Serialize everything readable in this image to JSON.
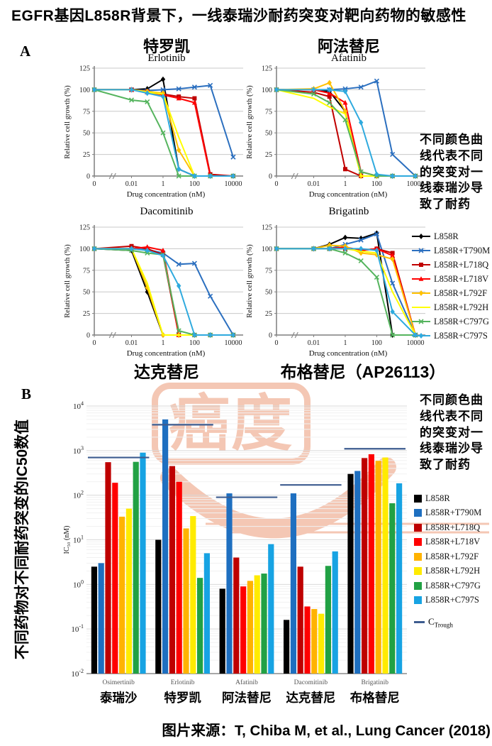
{
  "title": "EGFR基因L858R背景下，一线泰瑞沙耐药突变对靶向药物的敏感性",
  "caption": "图片来源：T, Chiba M, et al., Lung Cancer (2018)",
  "watermark": "癌度",
  "side_note": "不同颜色曲线代表不同的突变对一线泰瑞沙导致了耐药",
  "panel_a": {
    "label": "A",
    "y_label": "Relative cell growth (%)",
    "x_label": "Drug concentration (nM)",
    "x_tick_labels": [
      "0",
      "0.01",
      "1",
      "100",
      "10000"
    ],
    "x_tick_indices": [
      0,
      1,
      3,
      5,
      7
    ],
    "y_ticks": [
      0,
      25,
      50,
      75,
      100,
      125
    ]
  },
  "panel_b": {
    "label": "B",
    "axis_label_cn": "不同药物对不同耐药突变的IC50数值",
    "y_label": "IC₅₀ (nM)",
    "y_tick_exponents": [
      "4",
      "3",
      "2",
      "1",
      "0",
      "-1",
      "-2"
    ]
  },
  "legend": {
    "ctrough": {
      "pre": "C",
      "sub": "Trough"
    }
  },
  "chart_data": [
    {
      "id": "erlotinib",
      "type": "line",
      "title_cn": "特罗凯",
      "title_en": "Erlotinib",
      "cn_position": "above",
      "xlabel": "Drug concentration (nM)",
      "ylabel": "Relative cell growth (%)",
      "ylim": [
        0,
        125
      ],
      "x_values": [
        0,
        0.01,
        0.1,
        1,
        10,
        100,
        1000,
        10000
      ],
      "series": [
        {
          "name": "L858R",
          "color": "#000000",
          "marker": "diamond",
          "values": [
            100,
            100,
            101,
            112,
            8,
            0,
            0,
            0
          ]
        },
        {
          "name": "L858R+T790M",
          "color": "#2B6FBF",
          "marker": "x",
          "values": [
            100,
            100,
            99,
            100,
            101,
            103,
            105,
            22
          ]
        },
        {
          "name": "L858R+L718Q",
          "color": "#C00000",
          "marker": "square",
          "values": [
            100,
            100,
            98,
            95,
            92,
            90,
            2,
            0
          ]
        },
        {
          "name": "L858R+L718V",
          "color": "#FF0000",
          "marker": "triangle",
          "values": [
            100,
            100,
            97,
            94,
            90,
            85,
            0,
            0
          ]
        },
        {
          "name": "L858R+L792F",
          "color": "#FFC000",
          "marker": "diamond",
          "values": [
            100,
            100,
            98,
            96,
            30,
            0,
            0,
            0
          ]
        },
        {
          "name": "L858R+L792H",
          "color": "#FFFF00",
          "marker": "none",
          "values": [
            100,
            100,
            97,
            95,
            45,
            0,
            0,
            0
          ]
        },
        {
          "name": "L858R+C797G",
          "color": "#55B45E",
          "marker": "x",
          "values": [
            100,
            88,
            86,
            50,
            0,
            0,
            0,
            0
          ]
        },
        {
          "name": "L858R+C797S",
          "color": "#2FAADE",
          "marker": "diamond",
          "values": [
            100,
            100,
            96,
            92,
            8,
            0,
            0,
            0
          ]
        }
      ]
    },
    {
      "id": "afatinib",
      "type": "line",
      "title_cn": "阿法替尼",
      "title_en": "Afatinib",
      "cn_position": "above",
      "xlabel": "Drug concentration (nM)",
      "ylabel": "Relative cell growth (%)",
      "ylim": [
        0,
        125
      ],
      "x_values": [
        0,
        0.01,
        0.1,
        1,
        10,
        100,
        1000,
        10000
      ],
      "series": [
        {
          "name": "L858R",
          "color": "#000000",
          "marker": "diamond",
          "values": [
            100,
            100,
            98,
            75,
            0,
            0,
            0,
            0
          ]
        },
        {
          "name": "L858R+T790M",
          "color": "#2B6FBF",
          "marker": "x",
          "values": [
            100,
            100,
            100,
            101,
            103,
            110,
            25,
            0
          ]
        },
        {
          "name": "L858R+L718Q",
          "color": "#C00000",
          "marker": "square",
          "values": [
            100,
            97,
            92,
            8,
            0,
            0,
            0,
            0
          ]
        },
        {
          "name": "L858R+L718V",
          "color": "#FF0000",
          "marker": "triangle",
          "values": [
            100,
            100,
            96,
            85,
            5,
            0,
            0,
            0
          ]
        },
        {
          "name": "L858R+L792F",
          "color": "#FFC000",
          "marker": "diamond",
          "values": [
            100,
            101,
            108,
            75,
            0,
            0,
            0,
            0
          ]
        },
        {
          "name": "L858R+L792H",
          "color": "#FFFF00",
          "marker": "none",
          "values": [
            100,
            90,
            80,
            72,
            0,
            0,
            0,
            0
          ]
        },
        {
          "name": "L858R+C797G",
          "color": "#55B45E",
          "marker": "x",
          "values": [
            100,
            95,
            85,
            65,
            5,
            0,
            0,
            0
          ]
        },
        {
          "name": "L858R+C797S",
          "color": "#2FAADE",
          "marker": "diamond",
          "values": [
            100,
            100,
            100,
            98,
            62,
            2,
            0,
            0
          ]
        }
      ]
    },
    {
      "id": "dacomitinib",
      "type": "line",
      "title_cn": "达克替尼",
      "title_en": "Dacomitinib",
      "cn_position": "below",
      "xlabel": "Drug concentration (nM)",
      "ylabel": "Relative cell growth (%)",
      "ylim": [
        0,
        125
      ],
      "x_values": [
        0,
        0.01,
        0.1,
        1,
        10,
        100,
        1000,
        10000
      ],
      "series": [
        {
          "name": "L858R",
          "color": "#000000",
          "marker": "diamond",
          "values": [
            100,
            98,
            50,
            0,
            0,
            0,
            0,
            0
          ]
        },
        {
          "name": "L858R+T790M",
          "color": "#2B6FBF",
          "marker": "x",
          "values": [
            100,
            100,
            99,
            95,
            82,
            83,
            45,
            0
          ]
        },
        {
          "name": "L858R+L718Q",
          "color": "#C00000",
          "marker": "square",
          "values": [
            100,
            103,
            100,
            93,
            0,
            0,
            0,
            0
          ]
        },
        {
          "name": "L858R+L718V",
          "color": "#FF0000",
          "marker": "triangle",
          "values": [
            100,
            100,
            102,
            98,
            0,
            0,
            0,
            0
          ]
        },
        {
          "name": "L858R+L792F",
          "color": "#FFC000",
          "marker": "diamond",
          "values": [
            100,
            100,
            55,
            0,
            0,
            0,
            0,
            0
          ]
        },
        {
          "name": "L858R+L792H",
          "color": "#FFFF00",
          "marker": "none",
          "values": [
            100,
            100,
            60,
            0,
            0,
            0,
            0,
            0
          ]
        },
        {
          "name": "L858R+C797G",
          "color": "#55B45E",
          "marker": "x",
          "values": [
            100,
            98,
            95,
            93,
            5,
            0,
            0,
            0
          ]
        },
        {
          "name": "L858R+C797S",
          "color": "#2FAADE",
          "marker": "diamond",
          "values": [
            100,
            100,
            98,
            92,
            57,
            0,
            0,
            0
          ]
        }
      ]
    },
    {
      "id": "brigatinib",
      "type": "line",
      "title_cn": "布格替尼（AP26113）",
      "title_en": "Brigatinb",
      "cn_position": "below",
      "xlabel": "Drug concentration (nM)",
      "ylabel": "Relative cell growth (%)",
      "ylim": [
        0,
        125
      ],
      "x_values": [
        0,
        0.01,
        0.1,
        1,
        10,
        100,
        1000,
        10000
      ],
      "series": [
        {
          "name": "L858R",
          "color": "#000000",
          "marker": "diamond",
          "values": [
            100,
            100,
            105,
            113,
            112,
            118,
            0,
            0
          ]
        },
        {
          "name": "L858R+T790M",
          "color": "#2B6FBF",
          "marker": "x",
          "values": [
            100,
            100,
            100,
            105,
            110,
            117,
            60,
            0
          ]
        },
        {
          "name": "L858R+L718Q",
          "color": "#C00000",
          "marker": "square",
          "values": [
            100,
            100,
            100,
            100,
            98,
            100,
            95,
            0
          ]
        },
        {
          "name": "L858R+L718V",
          "color": "#FF0000",
          "marker": "triangle",
          "values": [
            100,
            100,
            100,
            102,
            98,
            100,
            92,
            0
          ]
        },
        {
          "name": "L858R+L792F",
          "color": "#FFC000",
          "marker": "diamond",
          "values": [
            100,
            100,
            104,
            103,
            95,
            93,
            88,
            0
          ]
        },
        {
          "name": "L858R+L792H",
          "color": "#FFFF00",
          "marker": "none",
          "values": [
            100,
            100,
            100,
            100,
            97,
            95,
            50,
            0
          ]
        },
        {
          "name": "L858R+C797G",
          "color": "#55B45E",
          "marker": "x",
          "values": [
            100,
            100,
            100,
            95,
            86,
            67,
            0,
            0
          ]
        },
        {
          "name": "L858R+C797S",
          "color": "#2FAADE",
          "marker": "diamond",
          "values": [
            100,
            100,
            100,
            100,
            100,
            98,
            27,
            0
          ]
        }
      ]
    },
    {
      "id": "ic50",
      "type": "bar",
      "ylabel": "IC₅₀ (nM)",
      "log_ylim": [
        -2,
        4
      ],
      "categories_en": [
        "Osimertinib",
        "Erlotinib",
        "Afatinib",
        "Dacomitinib",
        "Brigatinib"
      ],
      "categories_cn": [
        "泰瑞沙",
        "特罗凯",
        "阿法替尼",
        "达克替尼",
        "布格替尼"
      ],
      "series": [
        {
          "name": "L858R",
          "color": "#000000",
          "values": [
            2.5,
            10,
            0.8,
            0.16,
            300
          ]
        },
        {
          "name": "L858R+T790M",
          "color": "#1E6FC0",
          "values": [
            3,
            5000,
            110,
            110,
            350
          ]
        },
        {
          "name": "L858R+L718Q",
          "color": "#BE0000",
          "values": [
            550,
            450,
            4,
            2.5,
            680
          ]
        },
        {
          "name": "L858R+L718V",
          "color": "#FF0000",
          "values": [
            190,
            200,
            0.9,
            0.32,
            830
          ]
        },
        {
          "name": "L858R+L792F",
          "color": "#FFB300",
          "values": [
            33,
            18,
            1.2,
            0.28,
            590
          ]
        },
        {
          "name": "L858R+L792H",
          "color": "#FFEB00",
          "values": [
            50,
            34,
            1.6,
            0.22,
            700
          ]
        },
        {
          "name": "L858R+C797G",
          "color": "#21A144",
          "values": [
            560,
            1.4,
            1.75,
            2.6,
            66
          ]
        },
        {
          "name": "L858R+C797S",
          "color": "#17A3E3",
          "values": [
            900,
            5,
            8,
            5.5,
            185
          ]
        }
      ],
      "ctrough": {
        "name": "C_Trough",
        "color": "#3D5C8F",
        "values": [
          700,
          3800,
          90,
          170,
          1100
        ]
      }
    }
  ]
}
